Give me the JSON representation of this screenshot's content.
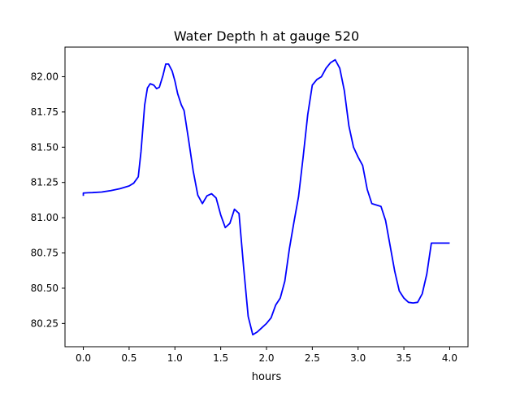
{
  "chart_data": {
    "type": "line",
    "title": "Water Depth h at gauge 520",
    "xlabel": "hours",
    "ylabel": "",
    "xlim": [
      -0.2,
      4.2
    ],
    "ylim": [
      80.085,
      82.21
    ],
    "xticks": [
      0.0,
      0.5,
      1.0,
      1.5,
      2.0,
      2.5,
      3.0,
      3.5,
      4.0
    ],
    "xtick_labels": [
      "0.0",
      "0.5",
      "1.0",
      "1.5",
      "2.0",
      "2.5",
      "3.0",
      "3.5",
      "4.0"
    ],
    "yticks": [
      80.25,
      80.5,
      80.75,
      81.0,
      81.25,
      81.5,
      81.75,
      82.0
    ],
    "ytick_labels": [
      "80.25",
      "80.50",
      "80.75",
      "81.00",
      "81.25",
      "81.50",
      "81.75",
      "82.00"
    ],
    "grid": false,
    "legend": "none",
    "series": [
      {
        "color": "#0000ff",
        "x": [
          0.0,
          0.0,
          0.05,
          0.1,
          0.2,
          0.3,
          0.4,
          0.5,
          0.55,
          0.6,
          0.63,
          0.67,
          0.7,
          0.73,
          0.77,
          0.8,
          0.83,
          0.87,
          0.9,
          0.93,
          0.97,
          1.0,
          1.03,
          1.07,
          1.1,
          1.15,
          1.2,
          1.25,
          1.3,
          1.35,
          1.4,
          1.45,
          1.5,
          1.55,
          1.6,
          1.65,
          1.7,
          1.75,
          1.8,
          1.85,
          1.9,
          1.95,
          2.0,
          2.05,
          2.1,
          2.15,
          2.2,
          2.25,
          2.3,
          2.35,
          2.4,
          2.45,
          2.5,
          2.55,
          2.6,
          2.65,
          2.7,
          2.75,
          2.8,
          2.85,
          2.9,
          2.95,
          3.0,
          3.05,
          3.1,
          3.15,
          3.2,
          3.25,
          3.3,
          3.35,
          3.4,
          3.45,
          3.5,
          3.55,
          3.6,
          3.65,
          3.7,
          3.75,
          3.8,
          3.85,
          3.9,
          3.95,
          4.0
        ],
        "y": [
          81.155,
          81.175,
          81.177,
          81.178,
          81.182,
          81.192,
          81.206,
          81.225,
          81.245,
          81.29,
          81.47,
          81.8,
          81.92,
          81.95,
          81.94,
          81.915,
          81.925,
          82.01,
          82.09,
          82.09,
          82.04,
          81.97,
          81.88,
          81.8,
          81.76,
          81.55,
          81.33,
          81.16,
          81.1,
          81.155,
          81.17,
          81.14,
          81.02,
          80.93,
          80.96,
          81.06,
          81.03,
          80.65,
          80.3,
          80.17,
          80.19,
          80.22,
          80.25,
          80.29,
          80.38,
          80.43,
          80.55,
          80.78,
          80.97,
          81.15,
          81.43,
          81.73,
          81.94,
          81.98,
          82.0,
          82.06,
          82.1,
          82.12,
          82.06,
          81.9,
          81.65,
          81.5,
          81.43,
          81.37,
          81.2,
          81.1,
          81.09,
          81.08,
          80.98,
          80.8,
          80.62,
          80.48,
          80.43,
          80.4,
          80.395,
          80.4,
          80.46,
          80.6,
          80.82,
          80.82,
          80.82,
          80.82,
          80.82
        ]
      }
    ]
  }
}
